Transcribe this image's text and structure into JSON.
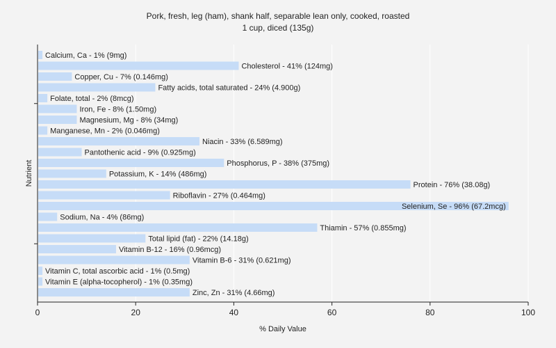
{
  "chart_data": {
    "type": "bar",
    "orientation": "horizontal",
    "title": "Pork, fresh, leg (ham), shank half, separable lean only, cooked, roasted",
    "subtitle": "1 cup, diced (135g)",
    "xlabel": "% Daily Value",
    "ylabel": "Nutrient",
    "xlim": [
      0,
      100
    ],
    "xticks": [
      0,
      20,
      40,
      60,
      80,
      100
    ],
    "grid": true,
    "bar_color": "#c6dcf7",
    "categories": [
      "Calcium, Ca",
      "Cholesterol",
      "Copper, Cu",
      "Fatty acids, total saturated",
      "Folate, total",
      "Iron, Fe",
      "Magnesium, Mg",
      "Manganese, Mn",
      "Niacin",
      "Pantothenic acid",
      "Phosphorus, P",
      "Potassium, K",
      "Protein",
      "Riboflavin",
      "Selenium, Se",
      "Sodium, Na",
      "Thiamin",
      "Total lipid (fat)",
      "Vitamin B-12",
      "Vitamin B-6",
      "Vitamin C, total ascorbic acid",
      "Vitamin E (alpha-tocopherol)",
      "Zinc, Zn"
    ],
    "values": [
      1,
      41,
      7,
      24,
      2,
      8,
      8,
      2,
      33,
      9,
      38,
      14,
      76,
      27,
      96,
      4,
      57,
      22,
      16,
      31,
      1,
      1,
      31
    ],
    "labels": [
      "Calcium, Ca - 1% (9mg)",
      "Cholesterol - 41% (124mg)",
      "Copper, Cu - 7% (0.146mg)",
      "Fatty acids, total saturated - 24% (4.900g)",
      "Folate, total - 2% (8mcg)",
      "Iron, Fe - 8% (1.50mg)",
      "Magnesium, Mg - 8% (34mg)",
      "Manganese, Mn - 2% (0.046mg)",
      "Niacin - 33% (6.589mg)",
      "Pantothenic acid - 9% (0.925mg)",
      "Phosphorus, P - 38% (375mg)",
      "Potassium, K - 14% (486mg)",
      "Protein - 76% (38.08g)",
      "Riboflavin - 27% (0.464mg)",
      "Selenium, Se - 96% (67.2mcg)",
      "Sodium, Na - 4% (86mg)",
      "Thiamin - 57% (0.855mg)",
      "Total lipid (fat) - 22% (14.18g)",
      "Vitamin B-12 - 16% (0.96mcg)",
      "Vitamin B-6 - 31% (0.621mg)",
      "Vitamin C, total ascorbic acid - 1% (0.5mg)",
      "Vitamin E (alpha-tocopherol) - 1% (0.35mg)",
      "Zinc, Zn - 31% (4.66mg)"
    ]
  }
}
